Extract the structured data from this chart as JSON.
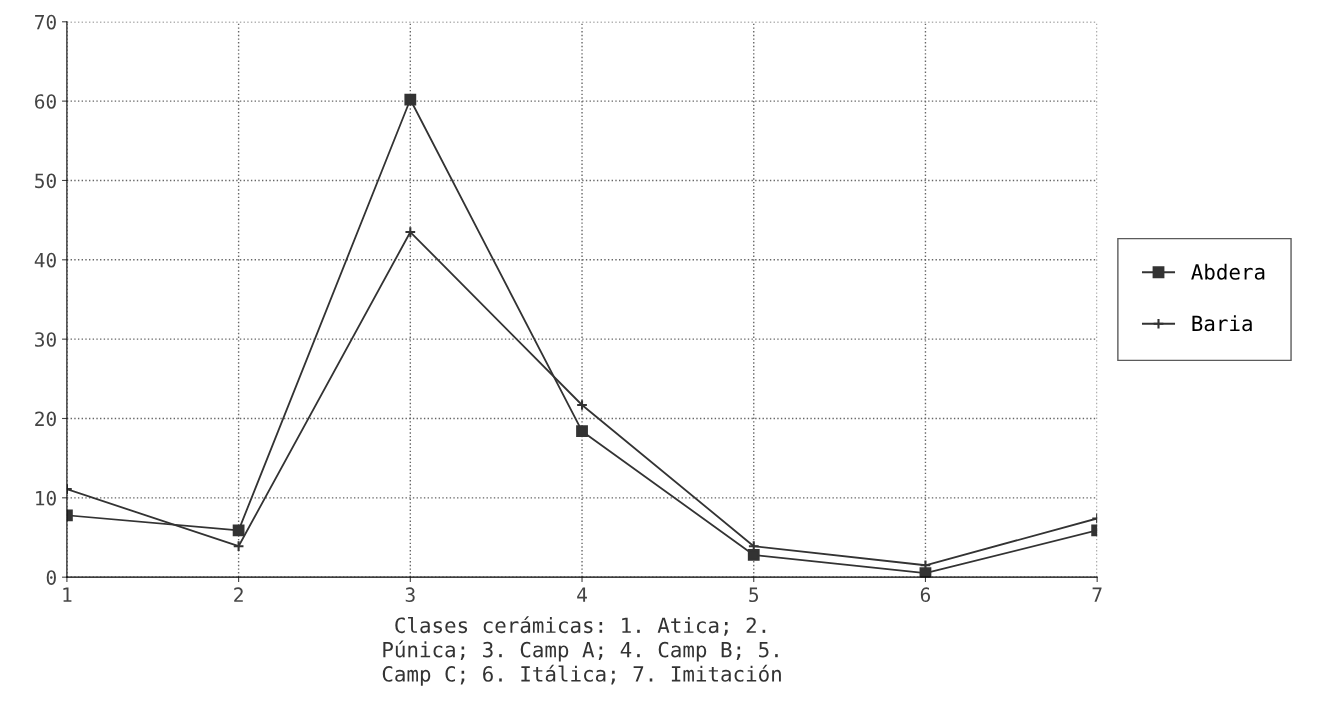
{
  "chart_data": {
    "type": "line",
    "x": [
      1,
      2,
      3,
      4,
      5,
      6,
      7
    ],
    "xlim": [
      1,
      7
    ],
    "xticks": [
      1,
      2,
      3,
      4,
      5,
      6,
      7
    ],
    "ylim": [
      0,
      70
    ],
    "yticks": [
      0,
      10,
      20,
      30,
      40,
      50,
      60,
      70
    ],
    "grid": true,
    "legend": "right",
    "line_style": "solid",
    "xlabel": "Clases cerámicas: 1. Atica; 2.\nPúnica; 3. Camp A; 4. Camp B; 5.\nCamp C; 6. Itálica; 7. Imitación",
    "series": [
      {
        "name": "Abdera",
        "color": "#333333",
        "marker": "square",
        "values": [
          7.8,
          5.9,
          60.2,
          18.4,
          2.8,
          0.5,
          5.9
        ]
      },
      {
        "name": "Baria",
        "color": "#333333",
        "marker": "cross",
        "values": [
          11.1,
          3.9,
          43.5,
          21.7,
          3.9,
          1.5,
          7.4
        ]
      }
    ]
  }
}
